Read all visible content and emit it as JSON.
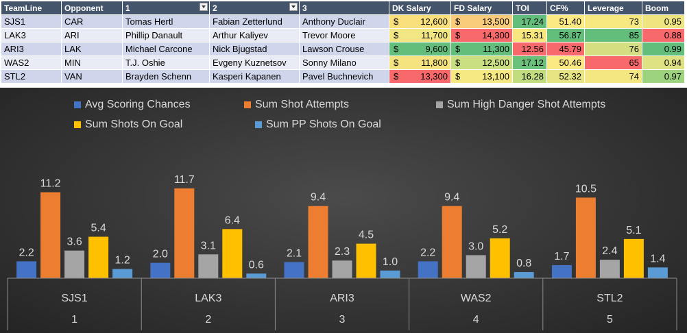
{
  "sheet": {
    "headers": [
      "TeamLine",
      "Opponent",
      "1",
      "2",
      "3",
      "DK Salary",
      "FD Salary",
      "TOI",
      "CF%",
      "Leverage",
      "Boom"
    ],
    "rows": [
      {
        "teamline": "SJS1",
        "opponent": "CAR",
        "p1": "Tomas Hertl",
        "p2": "Fabian Zetterlund",
        "p3": "Anthony Duclair",
        "dk_cur": "$",
        "dk": "12,600",
        "fd_cur": "$",
        "fd": "13,500",
        "toi": "17.24",
        "cf": "51.40",
        "leverage": "73",
        "boom": "0.95"
      },
      {
        "teamline": "LAK3",
        "opponent": "ARI",
        "p1": "Phillip Danault",
        "p2": "Arthur Kaliyev",
        "p3": "Trevor Moore",
        "dk_cur": "$",
        "dk": "11,700",
        "fd_cur": "$",
        "fd": "14,300",
        "toi": "15.31",
        "cf": "56.87",
        "leverage": "85",
        "boom": "0.88"
      },
      {
        "teamline": "ARI3",
        "opponent": "LAK",
        "p1": "Michael Carcone",
        "p2": "Nick Bjugstad",
        "p3": "Lawson Crouse",
        "dk_cur": "$",
        "dk": "9,600",
        "fd_cur": "$",
        "fd": "11,300",
        "toi": "12.56",
        "cf": "45.79",
        "leverage": "76",
        "boom": "0.99"
      },
      {
        "teamline": "WAS2",
        "opponent": "MIN",
        "p1": "T.J. Oshie",
        "p2": "Evgeny Kuznetsov",
        "p3": "Sonny Milano",
        "dk_cur": "$",
        "dk": "11,800",
        "fd_cur": "$",
        "fd": "12,500",
        "toi": "17.12",
        "cf": "50.46",
        "leverage": "65",
        "boom": "0.94"
      },
      {
        "teamline": "STL2",
        "opponent": "VAN",
        "p1": "Brayden Schenn",
        "p2": "Kasperi Kapanen",
        "p3": "Pavel Buchnevich",
        "dk_cur": "$",
        "dk": "13,300",
        "fd_cur": "$",
        "fd": "13,100",
        "toi": "16.28",
        "cf": "52.32",
        "leverage": "74",
        "boom": "0.97"
      }
    ],
    "cell_colors": {
      "dk": [
        "#f9e07c",
        "#f2e583",
        "#63be7b",
        "#f4e37f",
        "#f8696b"
      ],
      "fd": [
        "#f8cc7a",
        "#f8696b",
        "#63be7b",
        "#c9df81",
        "#f6e983"
      ],
      "toi": [
        "#63be7b",
        "#f8e67f",
        "#f8696b",
        "#6bc17c",
        "#c2dc80"
      ],
      "cf": [
        "#fbe983",
        "#63be7b",
        "#f8696b",
        "#fbe983",
        "#e6e483"
      ],
      "leverage": [
        "#f7e97f",
        "#63be7b",
        "#d5df81",
        "#f8696b",
        "#f4e782"
      ],
      "boom": [
        "#eee581",
        "#f8696b",
        "#63be7b",
        "#dee282",
        "#9dd37f"
      ]
    }
  },
  "chart_data": {
    "type": "bar",
    "categories": [
      {
        "name": "SJS1",
        "index": "1"
      },
      {
        "name": "LAK3",
        "index": "2"
      },
      {
        "name": "ARI3",
        "index": "3"
      },
      {
        "name": "WAS2",
        "index": "4"
      },
      {
        "name": "STL2",
        "index": "5"
      }
    ],
    "series": [
      {
        "name": "Avg Scoring Chances",
        "color": "#4472c4",
        "values": [
          2.2,
          2.0,
          2.1,
          2.2,
          1.7
        ]
      },
      {
        "name": "Sum Shot Attempts",
        "color": "#ed7d31",
        "values": [
          11.2,
          11.7,
          9.4,
          9.4,
          10.5
        ]
      },
      {
        "name": "Sum High Danger Shot Attempts",
        "color": "#a5a5a5",
        "values": [
          3.6,
          3.1,
          2.3,
          3.0,
          2.4
        ]
      },
      {
        "name": "Sum Shots On Goal",
        "color": "#ffc000",
        "values": [
          5.4,
          6.4,
          4.5,
          5.2,
          5.1
        ]
      },
      {
        "name": "Sum PP Shots On Goal",
        "color": "#5b9bd5",
        "values": [
          1.2,
          0.6,
          1.0,
          0.8,
          1.4
        ]
      }
    ],
    "legend_position": "top",
    "ylim": [
      0,
      14
    ],
    "grid": false
  }
}
